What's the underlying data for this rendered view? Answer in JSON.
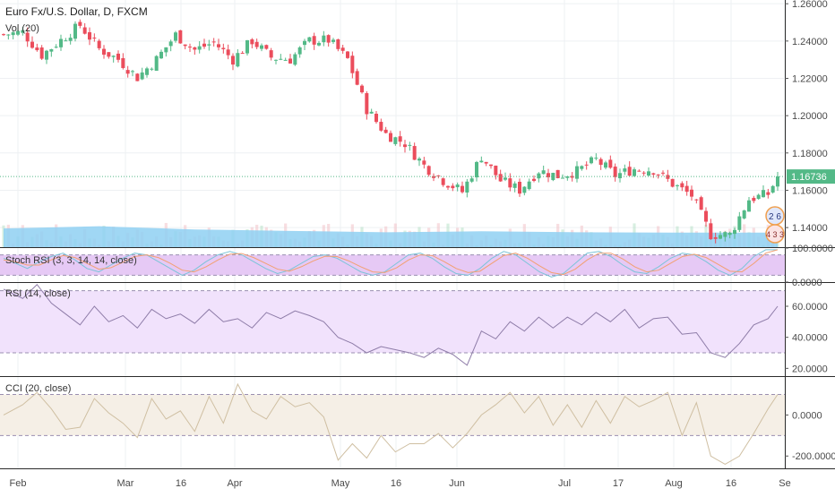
{
  "header": {
    "symbol_title": "Euro Fx/U.S. Dollar, D, FXCM",
    "volume_label": "Vol (20)"
  },
  "badges": {
    "earnings_count": "2 6",
    "dividends_count": "4 3 3"
  },
  "colors": {
    "up": "#53b987",
    "down": "#eb4d5c",
    "volume_ma": "#8fd0f2",
    "last_price": "#53b987",
    "stoch_k": "#7bc4d8",
    "stoch_d": "#f2a072",
    "stoch_band": "#e6c9f5",
    "rsi_band": "#f1e2fc",
    "rsi_line": "#8e7ca8",
    "cci_band": "#f5efe6",
    "cci_line": "#cfbfa2",
    "grid": "#eef0f3",
    "axis_text": "#4a4a4a"
  },
  "chart_data": [
    {
      "type": "candlestick",
      "title": "Euro Fx/U.S. Dollar, D, FXCM",
      "x_tick_labels": [
        "Feb",
        "Mar",
        "16",
        "Apr",
        "May",
        "16",
        "Jun",
        "Jul",
        "17",
        "Aug",
        "16",
        "Se"
      ],
      "y_tick_labels": [
        "1.26000",
        "1.24000",
        "1.22000",
        "1.20000",
        "1.18000",
        "1.16000",
        "1.14000"
      ],
      "ylim": [
        1.1295,
        1.262
      ],
      "last_price": "1.16736",
      "grid": true,
      "close_points": [
        [
          0,
          1.2435
        ],
        [
          4,
          1.2448
        ],
        [
          8,
          1.2325
        ],
        [
          12,
          1.2405
        ],
        [
          16,
          1.2485
        ],
        [
          20,
          1.2358
        ],
        [
          24,
          1.2302
        ],
        [
          28,
          1.2205
        ],
        [
          32,
          1.2302
        ],
        [
          36,
          1.2433
        ],
        [
          40,
          1.2352
        ],
        [
          44,
          1.2393
        ],
        [
          48,
          1.2301
        ],
        [
          52,
          1.2402
        ],
        [
          56,
          1.2312
        ],
        [
          60,
          1.2302
        ],
        [
          64,
          1.2402
        ],
        [
          68,
          1.2405
        ],
        [
          72,
          1.2302
        ],
        [
          76,
          1.2035
        ],
        [
          80,
          1.1902
        ],
        [
          84,
          1.1852
        ],
        [
          88,
          1.1732
        ],
        [
          92,
          1.1653
        ],
        [
          96,
          1.1592
        ],
        [
          100,
          1.1782
        ],
        [
          104,
          1.1652
        ],
        [
          108,
          1.1602
        ],
        [
          112,
          1.1706
        ],
        [
          116,
          1.1677
        ],
        [
          120,
          1.1702
        ],
        [
          124,
          1.1764
        ],
        [
          128,
          1.168
        ],
        [
          132,
          1.1714
        ],
        [
          136,
          1.171
        ],
        [
          140,
          1.1634
        ],
        [
          144,
          1.1572
        ],
        [
          148,
          1.1362
        ],
        [
          152,
          1.1362
        ],
        [
          156,
          1.1552
        ],
        [
          160,
          1.158
        ],
        [
          162,
          1.16736
        ]
      ],
      "volume_ma_points": [
        [
          0,
          1.1395
        ],
        [
          20,
          1.1407
        ],
        [
          40,
          1.139
        ],
        [
          60,
          1.1382
        ],
        [
          80,
          1.1375
        ],
        [
          100,
          1.138
        ],
        [
          120,
          1.1375
        ],
        [
          140,
          1.1373
        ],
        [
          162,
          1.1373
        ]
      ]
    },
    {
      "type": "line",
      "title": "Stoch RSI (3, 3, 14, 14, close)",
      "y_tick_labels": [
        "100.0000",
        "0.0000"
      ],
      "ylim": [
        0,
        100
      ],
      "band": [
        20,
        80
      ],
      "series": [
        {
          "values": [
            70,
            55,
            40,
            60,
            75,
            85,
            65,
            40,
            30,
            50,
            70,
            85,
            80,
            60,
            40,
            20,
            35,
            60,
            80,
            90,
            80,
            60,
            40,
            25,
            35,
            55,
            75,
            80,
            70,
            50,
            30,
            20,
            30,
            55,
            80,
            85,
            70,
            45,
            25,
            20,
            40,
            70,
            90,
            80,
            55,
            30,
            15,
            25,
            55,
            85,
            90,
            75,
            50,
            30,
            25,
            45,
            70,
            85,
            80,
            60,
            35,
            20,
            40,
            75,
            95,
            95
          ]
        },
        {
          "values": [
            65,
            60,
            50,
            50,
            65,
            78,
            72,
            55,
            38,
            42,
            58,
            75,
            80,
            72,
            55,
            35,
            30,
            45,
            65,
            82,
            84,
            72,
            55,
            38,
            32,
            45,
            62,
            76,
            75,
            62,
            45,
            30,
            28,
            42,
            65,
            80,
            78,
            60,
            40,
            28,
            32,
            55,
            78,
            85,
            70,
            48,
            28,
            22,
            38,
            65,
            85,
            85,
            68,
            45,
            30,
            35,
            55,
            75,
            82,
            72,
            52,
            32,
            30,
            55,
            85,
            95
          ]
        }
      ]
    },
    {
      "type": "line",
      "title": "RSI (14, close)",
      "y_tick_labels": [
        "60.0000",
        "40.0000",
        "20.0000"
      ],
      "ylim": [
        15,
        75
      ],
      "band": [
        30,
        70
      ],
      "points": [
        [
          0,
          71
        ],
        [
          4,
          65
        ],
        [
          7,
          74
        ],
        [
          10,
          62
        ],
        [
          13,
          55
        ],
        [
          16,
          48
        ],
        [
          19,
          60
        ],
        [
          22,
          50
        ],
        [
          25,
          54
        ],
        [
          28,
          46
        ],
        [
          31,
          58
        ],
        [
          34,
          52
        ],
        [
          37,
          55
        ],
        [
          40,
          49
        ],
        [
          43,
          58
        ],
        [
          46,
          50
        ],
        [
          49,
          52
        ],
        [
          52,
          46
        ],
        [
          55,
          56
        ],
        [
          58,
          52
        ],
        [
          61,
          57
        ],
        [
          64,
          54
        ],
        [
          67,
          50
        ],
        [
          70,
          40
        ],
        [
          73,
          36
        ],
        [
          76,
          30
        ],
        [
          79,
          34
        ],
        [
          82,
          32
        ],
        [
          85,
          30
        ],
        [
          88,
          27
        ],
        [
          91,
          33
        ],
        [
          94,
          29
        ],
        [
          97,
          22
        ],
        [
          100,
          44
        ],
        [
          103,
          39
        ],
        [
          106,
          50
        ],
        [
          109,
          44
        ],
        [
          112,
          53
        ],
        [
          115,
          46
        ],
        [
          118,
          53
        ],
        [
          121,
          48
        ],
        [
          124,
          56
        ],
        [
          127,
          50
        ],
        [
          130,
          58
        ],
        [
          133,
          46
        ],
        [
          136,
          52
        ],
        [
          139,
          53
        ],
        [
          142,
          42
        ],
        [
          145,
          43
        ],
        [
          148,
          30
        ],
        [
          151,
          27
        ],
        [
          154,
          36
        ],
        [
          157,
          48
        ],
        [
          160,
          52
        ],
        [
          162,
          60
        ]
      ]
    },
    {
      "type": "line",
      "title": "CCI (20, close)",
      "y_tick_labels": [
        "0.0000",
        "-200.0000"
      ],
      "ylim": [
        -260,
        185
      ],
      "band": [
        -100,
        100
      ],
      "points": [
        [
          0,
          0
        ],
        [
          4,
          50
        ],
        [
          7,
          110
        ],
        [
          10,
          30
        ],
        [
          13,
          -70
        ],
        [
          16,
          -60
        ],
        [
          19,
          80
        ],
        [
          22,
          10
        ],
        [
          25,
          -40
        ],
        [
          28,
          -110
        ],
        [
          31,
          80
        ],
        [
          34,
          -20
        ],
        [
          37,
          20
        ],
        [
          40,
          -80
        ],
        [
          43,
          90
        ],
        [
          46,
          -40
        ],
        [
          49,
          150
        ],
        [
          52,
          20
        ],
        [
          55,
          -20
        ],
        [
          58,
          90
        ],
        [
          61,
          40
        ],
        [
          64,
          60
        ],
        [
          67,
          -10
        ],
        [
          70,
          -220
        ],
        [
          73,
          -140
        ],
        [
          76,
          -210
        ],
        [
          79,
          -100
        ],
        [
          82,
          -180
        ],
        [
          85,
          -140
        ],
        [
          88,
          -140
        ],
        [
          91,
          -90
        ],
        [
          94,
          -160
        ],
        [
          97,
          -90
        ],
        [
          100,
          0
        ],
        [
          103,
          50
        ],
        [
          106,
          110
        ],
        [
          109,
          10
        ],
        [
          112,
          90
        ],
        [
          115,
          -50
        ],
        [
          118,
          50
        ],
        [
          121,
          -60
        ],
        [
          124,
          70
        ],
        [
          127,
          -40
        ],
        [
          130,
          90
        ],
        [
          133,
          40
        ],
        [
          136,
          70
        ],
        [
          139,
          110
        ],
        [
          142,
          -100
        ],
        [
          145,
          60
        ],
        [
          148,
          -200
        ],
        [
          151,
          -240
        ],
        [
          154,
          -200
        ],
        [
          157,
          -90
        ],
        [
          160,
          30
        ],
        [
          162,
          100
        ]
      ]
    }
  ]
}
